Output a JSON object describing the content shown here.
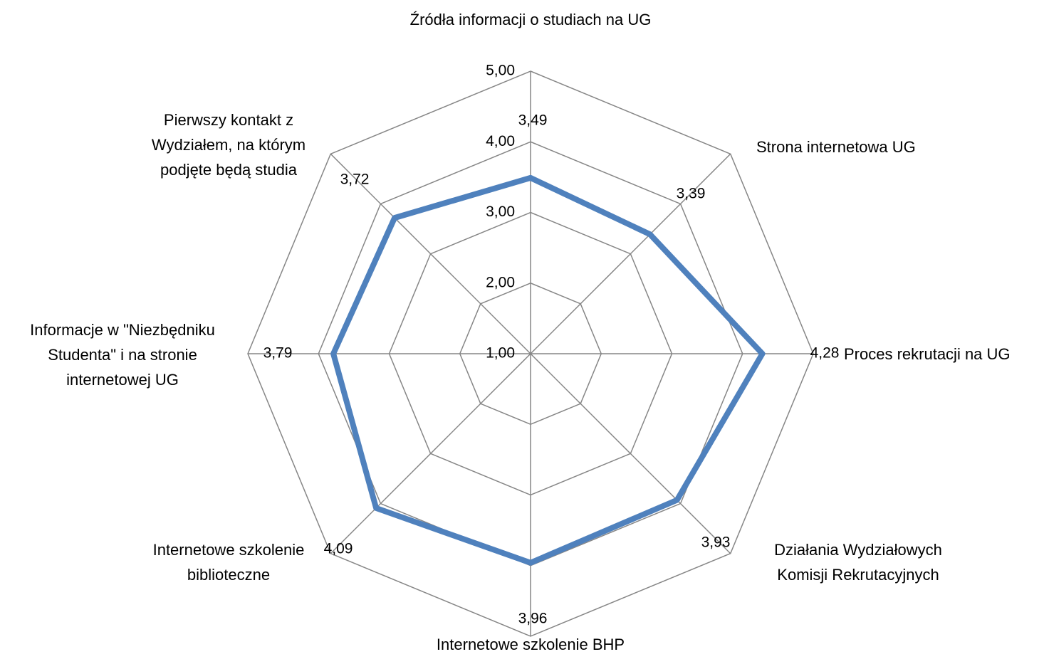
{
  "chart_data": {
    "type": "radar",
    "categories": [
      "Źródła informacji o studiach na UG",
      "Strona internetowa UG",
      "Proces rekrutacji na UG",
      "Działania Wydziałowych Komisji Rekrutacyjnych",
      "Internetowe szkolenie BHP",
      "Internetowe szkolenie biblioteczne",
      "Informacje w \"Niezbędniku Studenta\" i na stronie internetowej UG",
      "Pierwszy kontakt z Wydziałem, na którym podjęte będą studia"
    ],
    "values": [
      3.49,
      3.39,
      4.28,
      3.93,
      3.96,
      4.09,
      3.79,
      3.72
    ],
    "value_labels": [
      "3,49",
      "3,39",
      "4,28",
      "3,93",
      "3,96",
      "4,09",
      "3,79",
      "3,72"
    ],
    "color": "#4f81bd",
    "rlim": [
      1,
      5
    ],
    "rticks": [
      {
        "value": 1,
        "label": "1,00"
      },
      {
        "value": 2,
        "label": "2,00"
      },
      {
        "value": 3,
        "label": "3,00"
      },
      {
        "value": 4,
        "label": "4,00"
      },
      {
        "value": 5,
        "label": "5,00"
      }
    ],
    "grid": true
  }
}
